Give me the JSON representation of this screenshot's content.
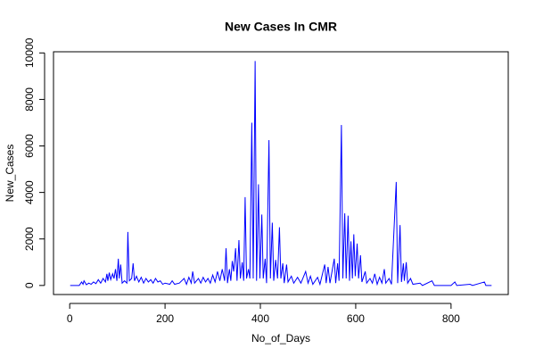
{
  "chart_data": {
    "type": "line",
    "title": "New Cases In CMR",
    "x_label": "No_of_Days",
    "y_label": "New_Cases",
    "color": "#0000ff",
    "x": [
      1,
      20,
      25,
      28,
      30,
      35,
      40,
      45,
      50,
      55,
      60,
      65,
      70,
      75,
      78,
      80,
      83,
      86,
      90,
      93,
      96,
      99,
      102,
      104,
      107,
      110,
      115,
      120,
      122,
      125,
      130,
      133,
      136,
      140,
      145,
      150,
      155,
      160,
      165,
      170,
      175,
      180,
      185,
      190,
      195,
      200,
      210,
      215,
      220,
      230,
      240,
      245,
      250,
      255,
      258,
      262,
      270,
      275,
      280,
      285,
      290,
      295,
      300,
      305,
      310,
      315,
      320,
      325,
      328,
      331,
      335,
      338,
      341,
      344,
      348,
      351,
      355,
      358,
      362,
      365,
      368,
      371,
      375,
      378,
      382,
      385,
      389,
      392,
      396,
      399,
      403,
      406,
      410,
      413,
      418,
      421,
      425,
      428,
      432,
      436,
      440,
      443,
      447,
      450,
      455,
      458,
      465,
      470,
      478,
      485,
      495,
      500,
      505,
      510,
      520,
      525,
      535,
      538,
      542,
      546,
      555,
      558,
      562,
      565,
      570,
      573,
      577,
      580,
      584,
      587,
      590,
      593,
      596,
      599,
      603,
      606,
      610,
      613,
      620,
      623,
      630,
      635,
      640,
      645,
      650,
      655,
      660,
      663,
      670,
      675,
      685,
      688,
      693,
      696,
      700,
      702,
      706,
      709,
      715,
      720,
      735,
      740,
      760,
      765,
      800,
      808,
      812,
      840,
      845,
      870,
      873,
      885
    ],
    "values": [
      0,
      0,
      150,
      50,
      200,
      30,
      100,
      50,
      150,
      80,
      250,
      100,
      300,
      150,
      500,
      200,
      550,
      250,
      500,
      300,
      700,
      200,
      1150,
      300,
      900,
      100,
      200,
      100,
      2300,
      200,
      300,
      950,
      200,
      400,
      150,
      350,
      100,
      300,
      150,
      250,
      100,
      300,
      150,
      200,
      50,
      100,
      50,
      200,
      50,
      100,
      300,
      50,
      350,
      100,
      600,
      100,
      300,
      100,
      350,
      150,
      300,
      100,
      450,
      150,
      600,
      200,
      700,
      200,
      1600,
      100,
      700,
      200,
      1050,
      600,
      1600,
      200,
      1950,
      300,
      1000,
      200,
      3800,
      300,
      700,
      300,
      7000,
      300,
      9650,
      200,
      4350,
      300,
      3050,
      300,
      1150,
      100,
      6250,
      300,
      2700,
      200,
      1100,
      300,
      2500,
      300,
      950,
      100,
      900,
      150,
      400,
      100,
      350,
      100,
      600,
      100,
      400,
      50,
      350,
      50,
      900,
      100,
      800,
      100,
      1150,
      100,
      950,
      200,
      6900,
      300,
      3100,
      300,
      3000,
      200,
      1900,
      300,
      2200,
      400,
      1800,
      300,
      1300,
      150,
      600,
      100,
      300,
      100,
      500,
      50,
      350,
      100,
      700,
      100,
      300,
      50,
      4450,
      100,
      2600,
      150,
      950,
      200,
      1000,
      100,
      300,
      50,
      100,
      0,
      200,
      0,
      0,
      150,
      0,
      50,
      0,
      150,
      0,
      0
    ],
    "xlim": [
      -34,
      920
    ],
    "ylim": [
      -390,
      10050
    ],
    "xticks": [
      0,
      200,
      400,
      600,
      800
    ],
    "yticks": [
      0,
      2000,
      4000,
      6000,
      8000,
      10000
    ]
  }
}
